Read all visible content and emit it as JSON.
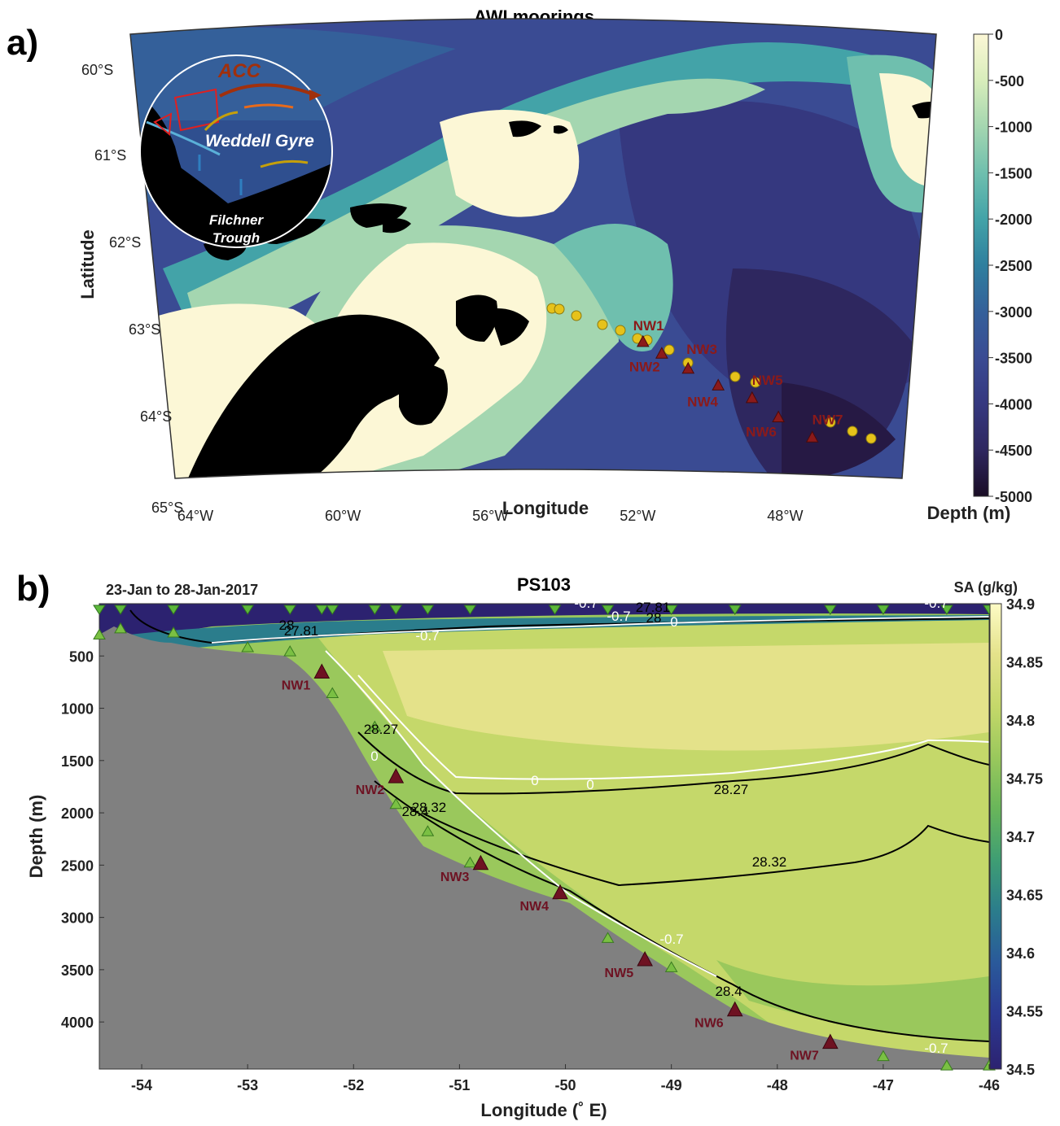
{
  "panel_a": {
    "label": "a)",
    "title": "AWI moorings",
    "xlabel": "Longitude",
    "ylabel": "Latitude",
    "lon_ticks": [
      {
        "v": -64,
        "t": "64°W"
      },
      {
        "v": -60,
        "t": "60°W"
      },
      {
        "v": -56,
        "t": "56°W"
      },
      {
        "v": -52,
        "t": "52°W"
      },
      {
        "v": -48,
        "t": "48°W"
      }
    ],
    "lat_ticks": [
      {
        "v": -60,
        "t": "60°S"
      },
      {
        "v": -61,
        "t": "61°S"
      },
      {
        "v": -62,
        "t": "62°S"
      },
      {
        "v": -63,
        "t": "63°S"
      },
      {
        "v": -64,
        "t": "64°S"
      },
      {
        "v": -65,
        "t": "65°S"
      }
    ],
    "colorbar": {
      "label": "Depth (m)",
      "ticks": [
        "0",
        "-500",
        "-1000",
        "-1500",
        "-2000",
        "-2500",
        "-3000",
        "-3500",
        "-4000",
        "-4500",
        "-5000"
      ],
      "colors": [
        "#fcf7d6",
        "#d8edbb",
        "#a4d6b0",
        "#6fbfae",
        "#43a3a8",
        "#2f7f9e",
        "#34609a",
        "#3a4b93",
        "#35387f",
        "#2e275f",
        "#261944",
        "#1a0d25"
      ]
    },
    "inset": {
      "labels": {
        "acc": "ACC",
        "gyre": "Weddell Gyre",
        "trough1": "Filchner",
        "trough2": "Trough"
      }
    },
    "moorings": [
      {
        "name": "NW1",
        "lon": -52.1,
        "lat": -63.28
      },
      {
        "name": "NW2",
        "lon": -51.6,
        "lat": -63.42
      },
      {
        "name": "NW3",
        "lon": -50.9,
        "lat": -63.6
      },
      {
        "name": "NW4",
        "lon": -50.1,
        "lat": -63.8
      },
      {
        "name": "NW5",
        "lon": -49.2,
        "lat": -63.95
      },
      {
        "name": "NW6",
        "lon": -48.5,
        "lat": -64.18
      },
      {
        "name": "NW7",
        "lon": -47.6,
        "lat": -64.42
      }
    ]
  },
  "panel_b": {
    "label": "b)",
    "title": "PS103",
    "date_range": "23-Jan to 28-Jan-2017",
    "xlabel": "Longitude (˚ E)",
    "ylabel": "Depth (m)",
    "colorbar_label": "SA (g/kg)",
    "colorbar_ticks": [
      "34.9",
      "34.85",
      "34.8",
      "34.75",
      "34.7",
      "34.65",
      "34.6",
      "34.55",
      "34.5"
    ],
    "colorbar_colors": [
      "#fdfbc5",
      "#e4e28a",
      "#c5d86a",
      "#9ac85c",
      "#69b65a",
      "#3f9e73",
      "#2b7d8c",
      "#2a5a9a",
      "#2b3a92",
      "#2c2270"
    ],
    "x_ticks": [
      "-54",
      "-53",
      "-52",
      "-51",
      "-50",
      "-49",
      "-48",
      "-47",
      "-46"
    ],
    "y_ticks": [
      "500",
      "1000",
      "1500",
      "2000",
      "2500",
      "3000",
      "3500",
      "4000"
    ],
    "contour_labels": [
      "27.81",
      "28",
      "-0.7",
      "27.81",
      "28",
      "0",
      "-0.7",
      "-0.7",
      "-0.7",
      "28.27",
      "0",
      "0",
      "0",
      "28.27",
      "28.32",
      "28.4",
      "28.32",
      "-0.7",
      "28.4",
      "-0.7"
    ],
    "moorings": [
      {
        "name": "NW1",
        "lon": -52.3,
        "depth": 650
      },
      {
        "name": "NW2",
        "lon": -51.6,
        "depth": 1650
      },
      {
        "name": "NW3",
        "lon": -50.8,
        "depth": 2480
      },
      {
        "name": "NW4",
        "lon": -50.05,
        "depth": 2760
      },
      {
        "name": "NW5",
        "lon": -49.25,
        "depth": 3400
      },
      {
        "name": "NW6",
        "lon": -48.4,
        "depth": 3880
      },
      {
        "name": "NW7",
        "lon": -47.5,
        "depth": 4190
      }
    ],
    "stations_lon": [
      -54.4,
      -54.2,
      -53.7,
      -53.0,
      -52.6,
      -52.3,
      -52.2,
      -51.8,
      -51.6,
      -51.3,
      -50.9,
      -50.1,
      -49.6,
      -49.0,
      -48.4,
      -48.4,
      -47.5,
      -47.0,
      -46.4,
      -46.0
    ]
  }
}
